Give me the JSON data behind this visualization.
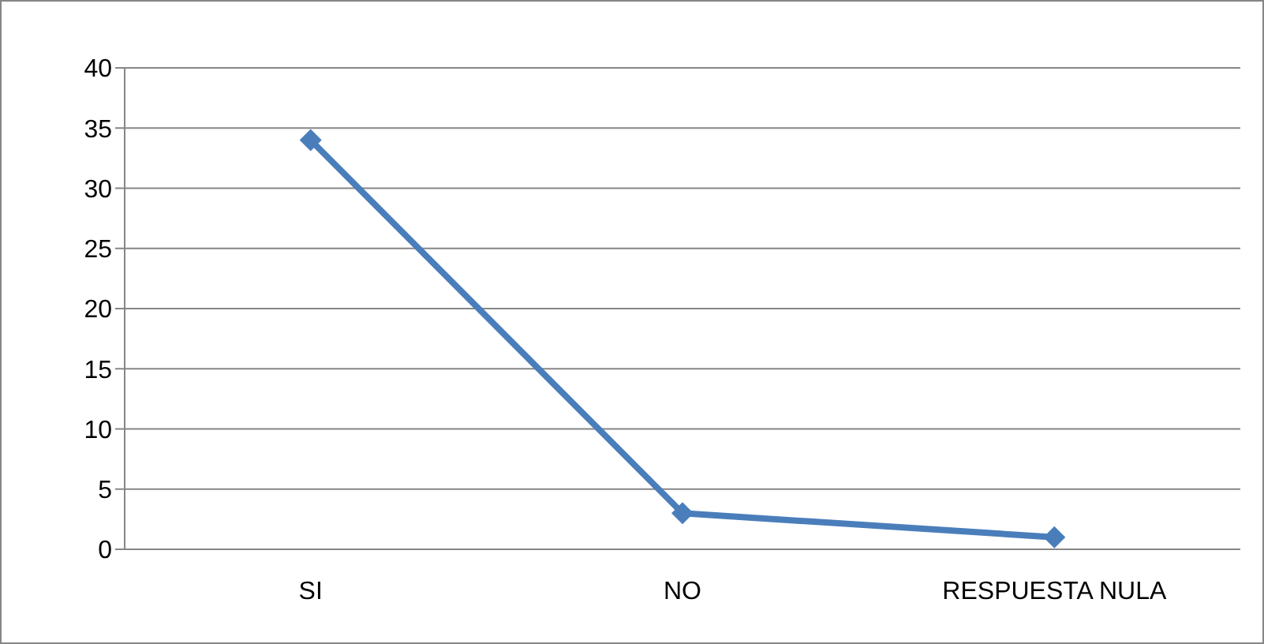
{
  "chart_data": {
    "type": "line",
    "categories": [
      "SI",
      "NO",
      "RESPUESTA NULA"
    ],
    "series": [
      {
        "color": "#4a7ebb",
        "values": [
          34,
          3,
          1
        ]
      }
    ],
    "ylim": [
      0,
      40
    ],
    "yticks": [
      0,
      5,
      10,
      15,
      20,
      25,
      30,
      35,
      40
    ],
    "grid": "y",
    "legend": false,
    "marker": "diamond",
    "line_style": "solid"
  }
}
